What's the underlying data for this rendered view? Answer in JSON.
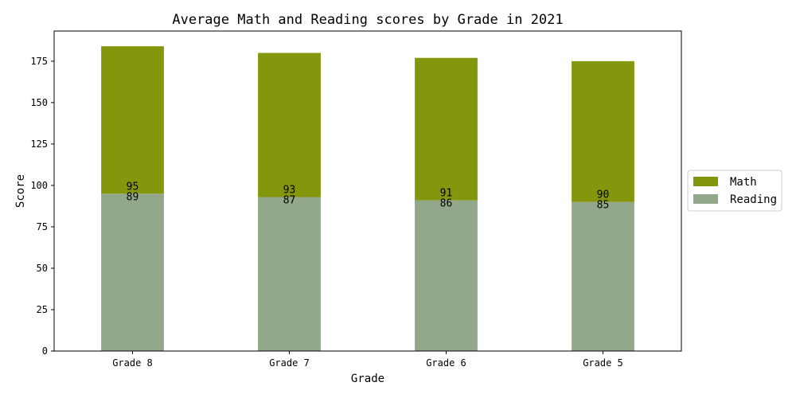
{
  "chart_data": {
    "type": "bar",
    "stacked": true,
    "title": "Average Math and Reading scores by Grade in 2021",
    "xlabel": "Grade",
    "ylabel": "Score",
    "categories": [
      "Grade 8",
      "Grade 7",
      "Grade 6",
      "Grade 5"
    ],
    "series": [
      {
        "name": "Reading",
        "values": [
          95,
          93,
          91,
          90
        ],
        "color": "#93a88b"
      },
      {
        "name": "Math",
        "values": [
          89,
          87,
          86,
          85
        ],
        "color": "#84960b"
      }
    ],
    "data_labels": {
      "upper": [
        "95",
        "93",
        "91",
        "90"
      ],
      "lower": [
        "89",
        "87",
        "86",
        "85"
      ]
    },
    "ylim": [
      0,
      193.2
    ],
    "yticks": [
      0,
      25,
      50,
      75,
      100,
      125,
      150,
      175
    ],
    "grid": false,
    "legend": {
      "placement": "center-right",
      "order": [
        "Math",
        "Reading"
      ]
    }
  }
}
